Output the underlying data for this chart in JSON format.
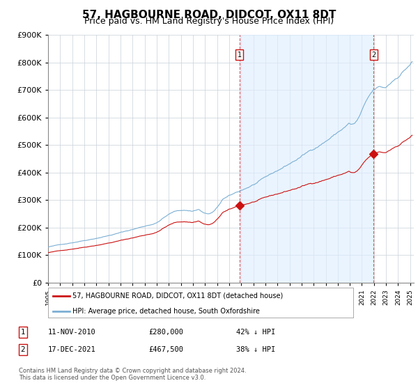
{
  "title": "57, HAGBOURNE ROAD, DIDCOT, OX11 8DT",
  "subtitle": "Price paid vs. HM Land Registry's House Price Index (HPI)",
  "title_fontsize": 11,
  "subtitle_fontsize": 9,
  "hpi_label": "HPI: Average price, detached house, South Oxfordshire",
  "property_label": "57, HAGBOURNE ROAD, DIDCOT, OX11 8DT (detached house)",
  "hpi_color": "#7bafd4",
  "property_color": "#cc1111",
  "background_color": "#ffffff",
  "grid_color": "#c8d0d8",
  "fill_color": "#ddeeff",
  "ylim": [
    0,
    900000
  ],
  "yticks": [
    0,
    100000,
    200000,
    300000,
    400000,
    500000,
    600000,
    700000,
    800000,
    900000
  ],
  "xlim_start": 1995.0,
  "xlim_end": 2025.3,
  "footer_text": "Contains HM Land Registry data © Crown copyright and database right 2024.\nThis data is licensed under the Open Government Licence v3.0.",
  "sale1_label": "1",
  "sale1_date": "11-NOV-2010",
  "sale1_price": "£280,000",
  "sale1_hpi": "42% ↓ HPI",
  "sale1_year": 2010.87,
  "sale1_value": 280000,
  "sale2_label": "2",
  "sale2_date": "17-DEC-2021",
  "sale2_price": "£467,500",
  "sale2_hpi": "38% ↓ HPI",
  "sale2_year": 2021.96,
  "sale2_value": 467500,
  "ratio1": 0.58,
  "ratio2": 0.62
}
